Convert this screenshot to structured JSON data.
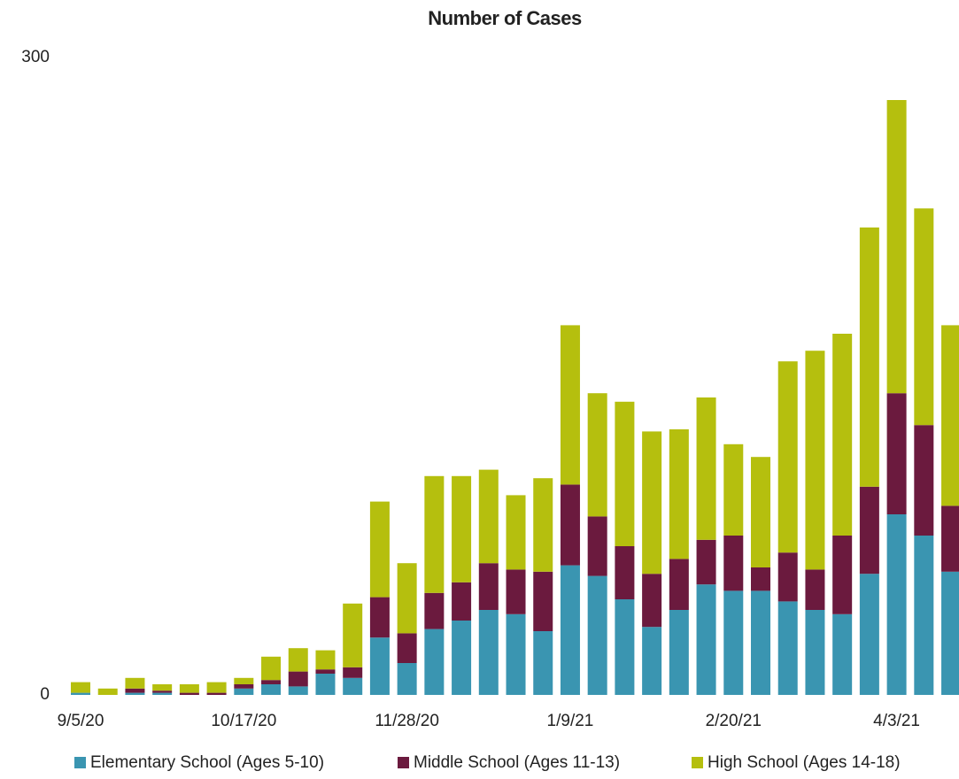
{
  "chart_data": {
    "type": "stacked_bar",
    "title": "Number of Cases",
    "categories": [
      "9/5/20",
      null,
      null,
      null,
      null,
      null,
      "10/17/20",
      null,
      null,
      null,
      null,
      null,
      "11/28/20",
      null,
      null,
      null,
      null,
      null,
      "1/9/21",
      null,
      null,
      null,
      null,
      null,
      "2/20/21",
      null,
      null,
      null,
      null,
      null,
      "4/3/21",
      null,
      null
    ],
    "series": [
      {
        "name": "Elementary School (Ages 5-10)",
        "color": "#3a95b1",
        "values": [
          1,
          0,
          1,
          1,
          0,
          0,
          3,
          5,
          4,
          10,
          8,
          27,
          15,
          31,
          35,
          40,
          38,
          30,
          61,
          56,
          45,
          32,
          40,
          52,
          49,
          49,
          44,
          40,
          38,
          57,
          85,
          75,
          58
        ]
      },
      {
        "name": "Middle School (Ages 11-13)",
        "color": "#6b1a3e",
        "values": [
          0,
          0,
          2,
          1,
          1,
          1,
          2,
          2,
          7,
          2,
          5,
          19,
          14,
          17,
          18,
          22,
          21,
          28,
          38,
          28,
          25,
          25,
          24,
          21,
          26,
          11,
          23,
          19,
          37,
          41,
          57,
          52,
          31
        ]
      },
      {
        "name": "High School (Ages 14-18)",
        "color": "#b5bf0e",
        "values": [
          5,
          3,
          5,
          3,
          4,
          5,
          3,
          11,
          11,
          9,
          30,
          45,
          33,
          55,
          50,
          44,
          35,
          44,
          75,
          58,
          68,
          67,
          61,
          67,
          43,
          52,
          90,
          103,
          95,
          122,
          138,
          102,
          85
        ]
      }
    ],
    "ylim": [
      0,
      300
    ],
    "yticks": [
      0,
      300
    ],
    "grid": false,
    "legend": "bottom"
  }
}
